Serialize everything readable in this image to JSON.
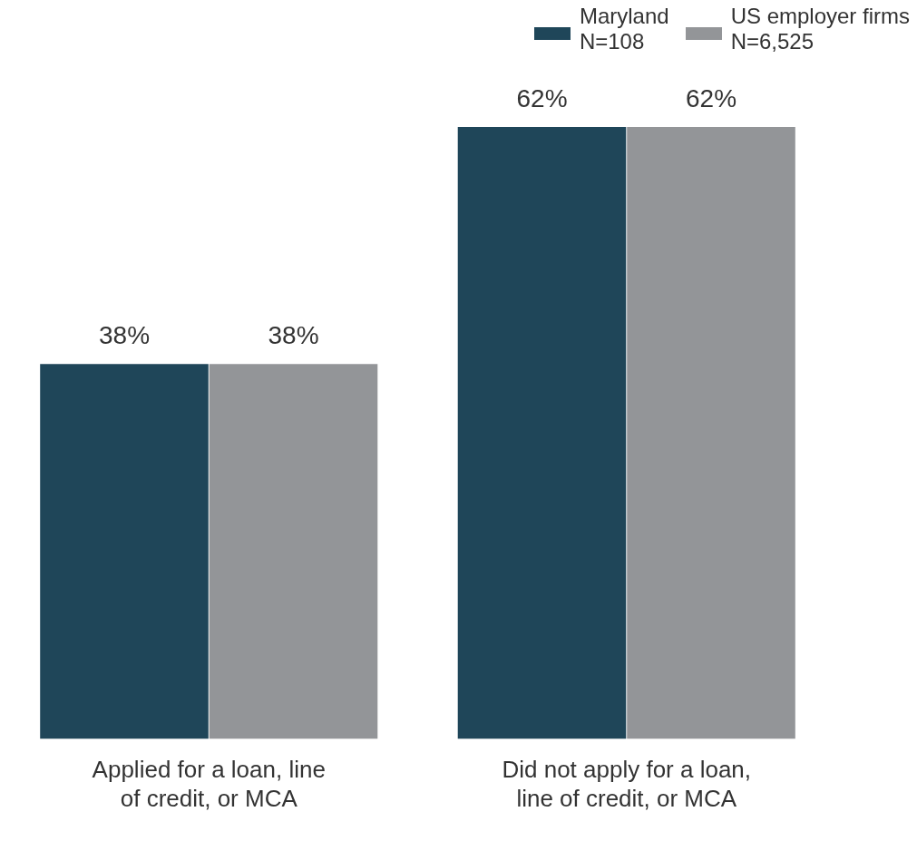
{
  "chart_data": {
    "type": "bar",
    "categories": [
      "Applied for a loan, line\nof credit, or MCA",
      "Did not apply for a loan,\nline of credit, or MCA"
    ],
    "series": [
      {
        "name": "Maryland\nN=108",
        "color": "#1f4659",
        "values": [
          38,
          62
        ],
        "value_labels": [
          "38%",
          "62%"
        ]
      },
      {
        "name": "US employer firms\nN=6,525",
        "color": "#939598",
        "values": [
          38,
          62
        ],
        "value_labels": [
          "38%",
          "62%"
        ]
      }
    ],
    "legend": "top right",
    "tick_labels": "x"
  }
}
